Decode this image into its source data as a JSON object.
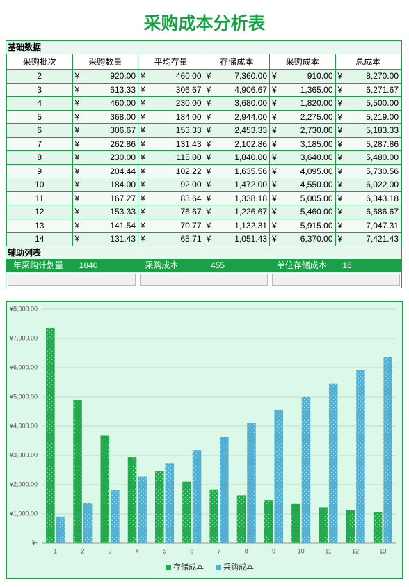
{
  "header": {
    "title": "采购成本分析表"
  },
  "table": {
    "section": "基础数据",
    "currency": "¥",
    "columns": [
      "采购批次",
      "采购数量",
      "平均存量",
      "存储成本",
      "采购成本",
      "总成本"
    ],
    "rows": [
      [
        "2",
        "920.00",
        "460.00",
        "7,360.00",
        "910.00",
        "8,270.00"
      ],
      [
        "3",
        "613.33",
        "306.67",
        "4,906.67",
        "1,365.00",
        "6,271.67"
      ],
      [
        "4",
        "460.00",
        "230.00",
        "3,680.00",
        "1,820.00",
        "5,500.00"
      ],
      [
        "5",
        "368.00",
        "184.00",
        "2,944.00",
        "2,275.00",
        "5,219.00"
      ],
      [
        "6",
        "306.67",
        "153.33",
        "2,453.33",
        "2,730.00",
        "5,183.33"
      ],
      [
        "7",
        "262.86",
        "131.43",
        "2,102.86",
        "3,185.00",
        "5,287.86"
      ],
      [
        "8",
        "230.00",
        "115.00",
        "1,840.00",
        "3,640.00",
        "5,480.00"
      ],
      [
        "9",
        "204.44",
        "102.22",
        "1,635.56",
        "4,095.00",
        "5,730.56"
      ],
      [
        "10",
        "184.00",
        "92.00",
        "1,472.00",
        "4,550.00",
        "6,022.00"
      ],
      [
        "11",
        "167.27",
        "83.64",
        "1,338.18",
        "5,005.00",
        "6,343.18"
      ],
      [
        "12",
        "153.33",
        "76.67",
        "1,226.67",
        "5,460.00",
        "6,686.67"
      ],
      [
        "13",
        "141.54",
        "70.77",
        "1,132.31",
        "5,915.00",
        "7,047.31"
      ],
      [
        "14",
        "131.43",
        "65.71",
        "1,051.43",
        "6,370.00",
        "7,421.43"
      ]
    ]
  },
  "aux": {
    "section": "辅助列表",
    "items": [
      {
        "label": "年采购计划量",
        "value": "1840"
      },
      {
        "label": "采购成本",
        "value": "455"
      },
      {
        "label": "单位存储成本",
        "value": "16"
      }
    ]
  },
  "chart_data": {
    "type": "bar",
    "categories": [
      "1",
      "2",
      "3",
      "4",
      "5",
      "6",
      "7",
      "8",
      "9",
      "10",
      "11",
      "12",
      "13"
    ],
    "series": [
      {
        "name": "存储成本",
        "color": "#1faa4b",
        "values": [
          7360,
          4906.67,
          3680,
          2944,
          2453.33,
          2102.86,
          1840,
          1635.56,
          1472,
          1338.18,
          1226.67,
          1132.31,
          1051.43
        ]
      },
      {
        "name": "采购成本",
        "color": "#4fb0d3",
        "values": [
          910,
          1365,
          1820,
          2275,
          2730,
          3185,
          3640,
          4095,
          4550,
          5005,
          5460,
          5915,
          6370
        ]
      }
    ],
    "ylim": [
      0,
      8000
    ],
    "yticks": [
      {
        "value": 0,
        "label": "¥-"
      },
      {
        "value": 1000,
        "label": "¥1,000.00"
      },
      {
        "value": 2000,
        "label": "¥2,000.00"
      },
      {
        "value": 3000,
        "label": "¥3,000.00"
      },
      {
        "value": 4000,
        "label": "¥4,000.00"
      },
      {
        "value": 5000,
        "label": "¥5,000.00"
      },
      {
        "value": 6000,
        "label": "¥6,000.00"
      },
      {
        "value": 7000,
        "label": "¥7,000.00"
      },
      {
        "value": 8000,
        "label": "¥8,000.00"
      }
    ],
    "grid": true,
    "legend": "bottom"
  }
}
